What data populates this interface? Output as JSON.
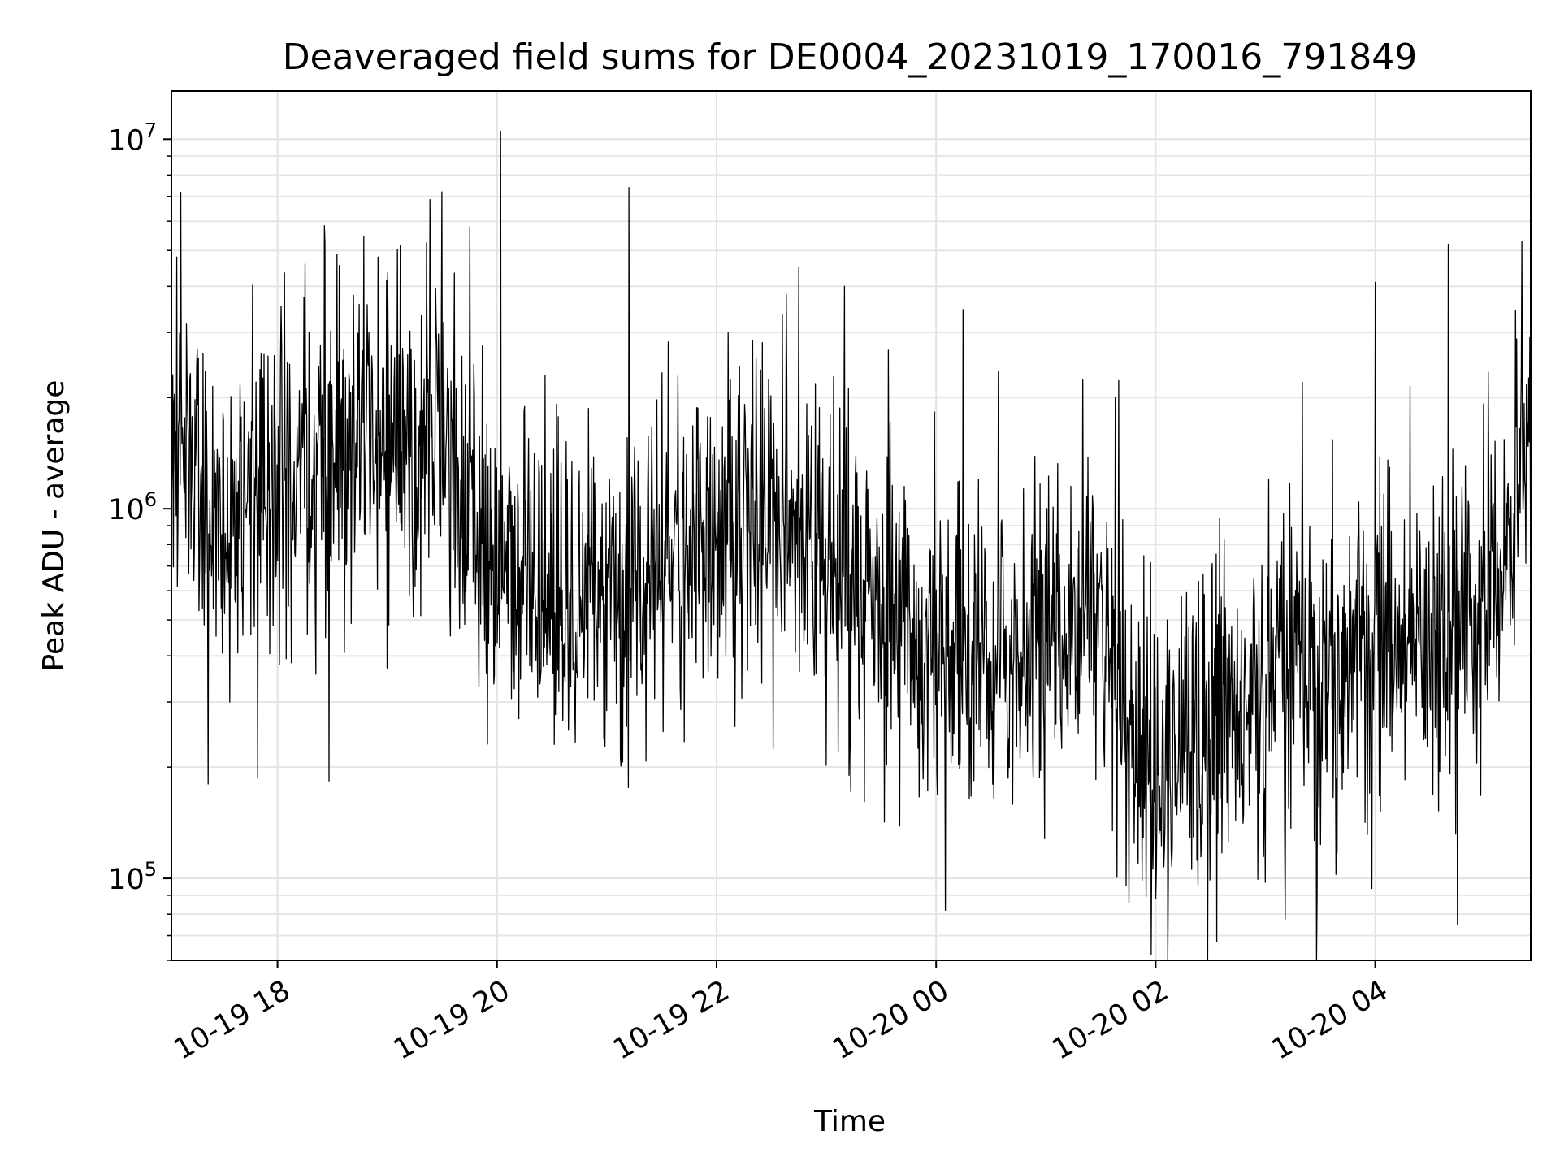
{
  "chart_data": {
    "type": "line",
    "title": "Deaveraged field sums for DE0004_20231019_170016_791849",
    "xlabel": "Time",
    "ylabel": "Peak ADU - average",
    "yscale": "log",
    "xlim": [
      "2023-10-19 17:02",
      "2023-10-20 05:25"
    ],
    "ylim": [
      60000,
      13500000
    ],
    "grid": true,
    "line_color": "#000000",
    "x_ticks": [
      {
        "value": "2023-10-19 18:00",
        "label": "10-19 18"
      },
      {
        "value": "2023-10-19 20:00",
        "label": "10-19 20"
      },
      {
        "value": "2023-10-19 22:00",
        "label": "10-19 22"
      },
      {
        "value": "2023-10-20 00:00",
        "label": "10-20 00"
      },
      {
        "value": "2023-10-20 02:00",
        "label": "10-20 02"
      },
      {
        "value": "2023-10-20 04:00",
        "label": "10-20 04"
      }
    ],
    "y_ticks": [
      {
        "value": 100000,
        "base": "10",
        "exp": "5"
      },
      {
        "value": 1000000,
        "base": "10",
        "exp": "6"
      },
      {
        "value": 10000000,
        "base": "10",
        "exp": "7"
      }
    ],
    "series": [
      {
        "x": [
          "2023-10-19 17:00",
          "2023-10-19 17:30",
          "2023-10-19 18:00",
          "2023-10-19 18:30",
          "2023-10-19 19:00",
          "2023-10-19 19:30",
          "2023-10-19 20:00",
          "2023-10-19 20:30",
          "2023-10-19 21:00",
          "2023-10-19 21:30",
          "2023-10-19 22:00",
          "2023-10-19 22:30",
          "2023-10-19 23:00",
          "2023-10-19 23:30",
          "2023-10-20 00:00",
          "2023-10-20 00:30",
          "2023-10-20 01:00",
          "2023-10-20 01:30",
          "2023-10-20 02:00",
          "2023-10-20 02:30",
          "2023-10-20 03:00",
          "2023-10-20 03:30",
          "2023-10-20 04:00",
          "2023-10-20 04:30",
          "2023-10-20 05:00",
          "2023-10-20 05:25"
        ],
        "values": [
          1800000,
          800000,
          1200000,
          1300000,
          1500000,
          1400000,
          700000,
          600000,
          550000,
          700000,
          800000,
          1000000,
          750000,
          500000,
          420000,
          350000,
          480000,
          450000,
          150000,
          250000,
          300000,
          350000,
          400000,
          380000,
          600000,
          1500000
        ],
        "peaks": [
          {
            "x": "2023-10-19 17:05",
            "value": 4800000
          },
          {
            "x": "2023-10-19 18:15",
            "value": 4600000
          },
          {
            "x": "2023-10-19 18:55",
            "value": 4800000
          },
          {
            "x": "2023-10-19 19:30",
            "value": 7200000
          },
          {
            "x": "2023-10-19 19:45",
            "value": 5800000
          },
          {
            "x": "2023-10-19 20:02",
            "value": 10500000
          },
          {
            "x": "2023-10-19 21:12",
            "value": 7400000
          },
          {
            "x": "2023-10-19 22:38",
            "value": 3800000
          },
          {
            "x": "2023-10-19 22:45",
            "value": 4500000
          },
          {
            "x": "2023-10-19 23:10",
            "value": 4000000
          },
          {
            "x": "2023-10-20 01:38",
            "value": 2000000
          },
          {
            "x": "2023-10-20 03:20",
            "value": 2200000
          },
          {
            "x": "2023-10-20 04:00",
            "value": 4100000
          },
          {
            "x": "2023-10-20 04:40",
            "value": 5200000
          },
          {
            "x": "2023-10-20 05:20",
            "value": 5300000
          }
        ],
        "troughs": [
          {
            "x": "2023-10-19 17:22",
            "value": 180000
          },
          {
            "x": "2023-10-20 00:05",
            "value": 82000
          },
          {
            "x": "2023-10-20 02:00",
            "value": 88000
          },
          {
            "x": "2023-10-20 04:45",
            "value": 75000
          }
        ]
      }
    ]
  }
}
